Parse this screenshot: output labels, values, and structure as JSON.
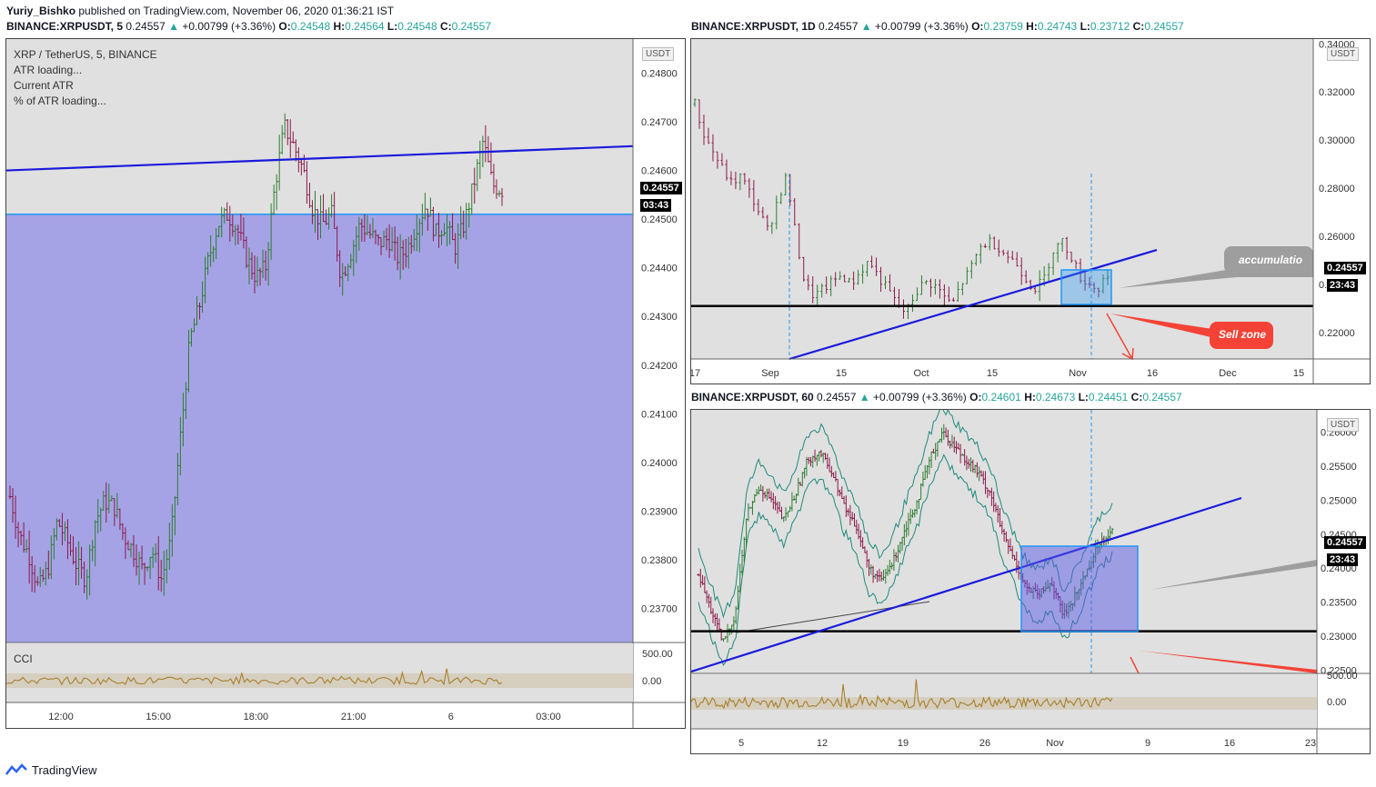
{
  "publish_line": {
    "author": "Yuriy_Bishko",
    "text": "published on TradingView.com, November 06, 2020 01:36:21 IST"
  },
  "left": {
    "symbol": "BINANCE:XRPUSDT, 5",
    "last": "0.24557",
    "change": "+0.00799 (+3.36%)",
    "o": "0.24548",
    "h": "0.24564",
    "l": "0.24548",
    "c": "0.24557",
    "legend_title": "XRP / TetherUS, 5, BINANCE",
    "legend_lines": [
      "ATR loading...",
      "Current ATR",
      "% of ATR loading..."
    ],
    "unit": "USDT",
    "price_tag": "0.24557",
    "timer_tag": "03:43",
    "cci_label": "CCI",
    "cci_ticks": [
      "500.00",
      "0.00"
    ]
  },
  "right_top": {
    "symbol": "BINANCE:XRPUSDT, 1D",
    "last": "0.24557",
    "change": "+0.00799 (+3.36%)",
    "o": "0.23759",
    "h": "0.24743",
    "l": "0.23712",
    "c": "0.24557",
    "unit": "USDT",
    "price_tag": "0.24557",
    "timer_tag": "23:43",
    "accum_label": "accumulatio",
    "sell_label": "Sell zone"
  },
  "right_bottom": {
    "symbol": "BINANCE:XRPUSDT, 60",
    "last": "0.24557",
    "change": "+0.00799 (+3.36%)",
    "o": "0.24601",
    "h": "0.24673",
    "l": "0.24451",
    "c": "0.24557",
    "unit": "USDT",
    "price_tag": "0.24557",
    "timer_tag": "23:43",
    "osc_ticks": [
      "500.00",
      "0.00"
    ]
  },
  "footer": {
    "brand": "TradingView"
  },
  "colors": {
    "up": "#26a69a",
    "candle_up": "#2e7d32",
    "candle_down": "#8b1a4a",
    "zone": "#a5a3e6",
    "trend": "#1a1adc",
    "box": "#2196f3",
    "sell": "#f44336"
  },
  "chart_data": [
    {
      "type": "candlestick",
      "title": "XRP / TetherUS, 5, BINANCE",
      "x_ticks": [
        "12:00",
        "15:00",
        "18:00",
        "21:00",
        "6",
        "03:00"
      ],
      "y_ticks": [
        0.248,
        0.247,
        0.246,
        0.245,
        0.244,
        0.243,
        0.242,
        0.241,
        0.24,
        0.239,
        0.238,
        0.237
      ],
      "ylim": [
        0.2363,
        0.2487
      ],
      "close_path": [
        0.2393,
        0.2385,
        0.2381,
        0.2374,
        0.2378,
        0.2388,
        0.2384,
        0.2379,
        0.2376,
        0.2388,
        0.2392,
        0.2391,
        0.2385,
        0.2382,
        0.2378,
        0.2382,
        0.2376,
        0.2384,
        0.2405,
        0.2425,
        0.2432,
        0.2442,
        0.2449,
        0.2451,
        0.2448,
        0.2442,
        0.2438,
        0.244,
        0.2457,
        0.2469,
        0.2465,
        0.246,
        0.2452,
        0.2449,
        0.2451,
        0.2438,
        0.2443,
        0.2449,
        0.2447,
        0.2445,
        0.2446,
        0.2442,
        0.2444,
        0.2449,
        0.2453,
        0.2447,
        0.2449,
        0.2444,
        0.2449,
        0.2457,
        0.2466,
        0.2457,
        0.2456
      ],
      "last": 0.24557,
      "zone_top": 0.2451,
      "trendline": [
        [
          0,
          0.246
        ],
        [
          1,
          0.2465
        ]
      ],
      "cci": {
        "label": "CCI",
        "ticks": [
          500,
          0
        ]
      }
    },
    {
      "type": "candlestick",
      "title": "BINANCE:XRPUSDT, 1D",
      "x_ticks": [
        "17",
        "Sep",
        "15",
        "Oct",
        "15",
        "Nov",
        "16",
        "Dec",
        "15"
      ],
      "y_ticks": [
        0.34,
        0.32,
        0.3,
        0.28,
        0.26,
        0.24,
        0.22
      ],
      "ylim": [
        0.209,
        0.342
      ],
      "close_path": [
        0.315,
        0.302,
        0.295,
        0.288,
        0.282,
        0.285,
        0.278,
        0.27,
        0.262,
        0.275,
        0.285,
        0.26,
        0.24,
        0.235,
        0.238,
        0.241,
        0.244,
        0.24,
        0.245,
        0.25,
        0.243,
        0.238,
        0.232,
        0.228,
        0.236,
        0.241,
        0.24,
        0.236,
        0.231,
        0.24,
        0.246,
        0.255,
        0.258,
        0.256,
        0.252,
        0.249,
        0.243,
        0.238,
        0.242,
        0.254,
        0.258,
        0.252,
        0.243,
        0.24,
        0.238,
        0.245
      ],
      "last": 0.24557,
      "support": 0.231,
      "annotations": [
        "accumulatio",
        "Sell zone"
      ]
    },
    {
      "type": "candlestick",
      "title": "BINANCE:XRPUSDT, 60",
      "x_ticks": [
        "5",
        "12",
        "19",
        "26",
        "Nov",
        "9",
        "16",
        "23"
      ],
      "y_ticks": [
        0.26,
        0.255,
        0.25,
        0.245,
        0.24,
        0.235,
        0.23,
        0.225
      ],
      "ylim": [
        0.2245,
        0.2633
      ],
      "close_path": [
        0.239,
        0.234,
        0.229,
        0.233,
        0.248,
        0.252,
        0.25,
        0.247,
        0.251,
        0.256,
        0.257,
        0.254,
        0.249,
        0.246,
        0.24,
        0.238,
        0.241,
        0.246,
        0.25,
        0.256,
        0.26,
        0.258,
        0.256,
        0.254,
        0.251,
        0.245,
        0.241,
        0.237,
        0.236,
        0.238,
        0.233,
        0.236,
        0.24,
        0.244,
        0.2456
      ],
      "last": 0.24557,
      "support": 0.2307
    }
  ]
}
